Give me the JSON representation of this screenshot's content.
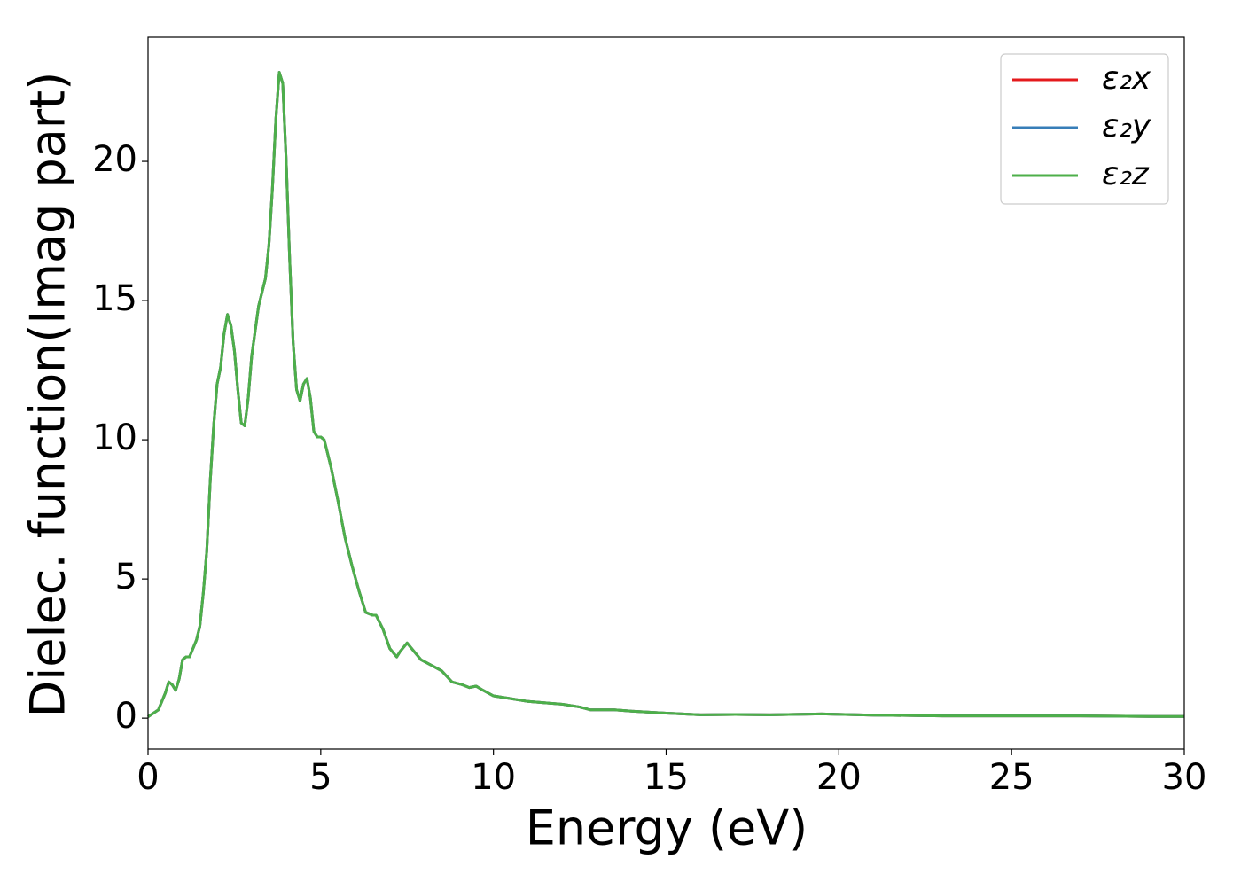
{
  "chart_data": {
    "type": "line",
    "xlabel": "Energy (eV)",
    "ylabel": "Dielec. function(Imag part)",
    "x": [
      0,
      0.3,
      0.5,
      0.6,
      0.7,
      0.8,
      0.9,
      1.0,
      1.1,
      1.2,
      1.4,
      1.5,
      1.6,
      1.7,
      1.8,
      1.9,
      2.0,
      2.1,
      2.2,
      2.3,
      2.4,
      2.5,
      2.6,
      2.7,
      2.8,
      2.9,
      3.0,
      3.2,
      3.3,
      3.4,
      3.5,
      3.6,
      3.7,
      3.8,
      3.9,
      4.0,
      4.1,
      4.2,
      4.3,
      4.4,
      4.5,
      4.6,
      4.7,
      4.8,
      4.9,
      5.0,
      5.1,
      5.3,
      5.5,
      5.7,
      5.9,
      6.1,
      6.3,
      6.5,
      6.6,
      6.8,
      7.0,
      7.2,
      7.3,
      7.5,
      7.7,
      7.9,
      8.2,
      8.5,
      8.8,
      9.1,
      9.3,
      9.5,
      9.7,
      10.0,
      10.5,
      11.0,
      11.5,
      12.0,
      12.5,
      12.8,
      13.5,
      14.0,
      15.0,
      16.0,
      17.0,
      18.0,
      19.5,
      21.0,
      23.0,
      25.0,
      27.0,
      29.0,
      30.0
    ],
    "series": [
      {
        "name": "ε₂x",
        "color": "#e41a1c",
        "values": [
          0.05,
          0.3,
          0.9,
          1.3,
          1.2,
          1.0,
          1.4,
          2.1,
          2.2,
          2.2,
          2.8,
          3.3,
          4.5,
          6.0,
          8.5,
          10.5,
          12.0,
          12.6,
          13.8,
          14.5,
          14.1,
          13.2,
          11.8,
          10.6,
          10.5,
          11.5,
          13.0,
          14.8,
          15.3,
          15.8,
          17.0,
          19.0,
          21.5,
          23.2,
          22.8,
          20.0,
          16.5,
          13.5,
          11.8,
          11.4,
          12.0,
          12.2,
          11.5,
          10.3,
          10.1,
          10.1,
          10.0,
          9.0,
          7.8,
          6.5,
          5.5,
          4.6,
          3.8,
          3.7,
          3.7,
          3.2,
          2.5,
          2.2,
          2.4,
          2.7,
          2.4,
          2.1,
          1.9,
          1.7,
          1.3,
          1.2,
          1.1,
          1.15,
          1.0,
          0.8,
          0.7,
          0.6,
          0.55,
          0.5,
          0.4,
          0.3,
          0.3,
          0.25,
          0.18,
          0.12,
          0.13,
          0.12,
          0.15,
          0.11,
          0.08,
          0.08,
          0.08,
          0.06,
          0.06
        ]
      },
      {
        "name": "ε₂y",
        "color": "#377eb8",
        "values": [
          0.05,
          0.3,
          0.9,
          1.3,
          1.2,
          1.0,
          1.4,
          2.1,
          2.2,
          2.2,
          2.8,
          3.3,
          4.5,
          6.0,
          8.5,
          10.5,
          12.0,
          12.6,
          13.8,
          14.5,
          14.1,
          13.2,
          11.8,
          10.6,
          10.5,
          11.5,
          13.0,
          14.8,
          15.3,
          15.8,
          17.0,
          19.0,
          21.5,
          23.2,
          22.8,
          20.0,
          16.5,
          13.5,
          11.8,
          11.4,
          12.0,
          12.2,
          11.5,
          10.3,
          10.1,
          10.1,
          10.0,
          9.0,
          7.8,
          6.5,
          5.5,
          4.6,
          3.8,
          3.7,
          3.7,
          3.2,
          2.5,
          2.2,
          2.4,
          2.7,
          2.4,
          2.1,
          1.9,
          1.7,
          1.3,
          1.2,
          1.1,
          1.15,
          1.0,
          0.8,
          0.7,
          0.6,
          0.55,
          0.5,
          0.4,
          0.3,
          0.3,
          0.25,
          0.18,
          0.12,
          0.13,
          0.12,
          0.15,
          0.11,
          0.08,
          0.08,
          0.08,
          0.06,
          0.06
        ]
      },
      {
        "name": "ε₂z",
        "color": "#4daf4a",
        "values": [
          0.05,
          0.3,
          0.9,
          1.3,
          1.2,
          1.0,
          1.4,
          2.1,
          2.2,
          2.2,
          2.8,
          3.3,
          4.5,
          6.0,
          8.5,
          10.5,
          12.0,
          12.6,
          13.8,
          14.5,
          14.1,
          13.2,
          11.8,
          10.6,
          10.5,
          11.5,
          13.0,
          14.8,
          15.3,
          15.8,
          17.0,
          19.0,
          21.5,
          23.2,
          22.8,
          20.0,
          16.5,
          13.5,
          11.8,
          11.4,
          12.0,
          12.2,
          11.5,
          10.3,
          10.1,
          10.1,
          10.0,
          9.0,
          7.8,
          6.5,
          5.5,
          4.6,
          3.8,
          3.7,
          3.7,
          3.2,
          2.5,
          2.2,
          2.4,
          2.7,
          2.4,
          2.1,
          1.9,
          1.7,
          1.3,
          1.2,
          1.1,
          1.15,
          1.0,
          0.8,
          0.7,
          0.6,
          0.55,
          0.5,
          0.4,
          0.3,
          0.3,
          0.25,
          0.18,
          0.12,
          0.13,
          0.12,
          0.15,
          0.11,
          0.08,
          0.08,
          0.08,
          0.06,
          0.06
        ]
      }
    ],
    "xlim": [
      0,
      30
    ],
    "xticks": [
      0,
      5,
      10,
      15,
      20,
      25,
      30
    ],
    "ylim": [
      -1.11,
      24.46
    ],
    "yticks": [
      0,
      5,
      10,
      15,
      20
    ],
    "legend": "upper right"
  }
}
